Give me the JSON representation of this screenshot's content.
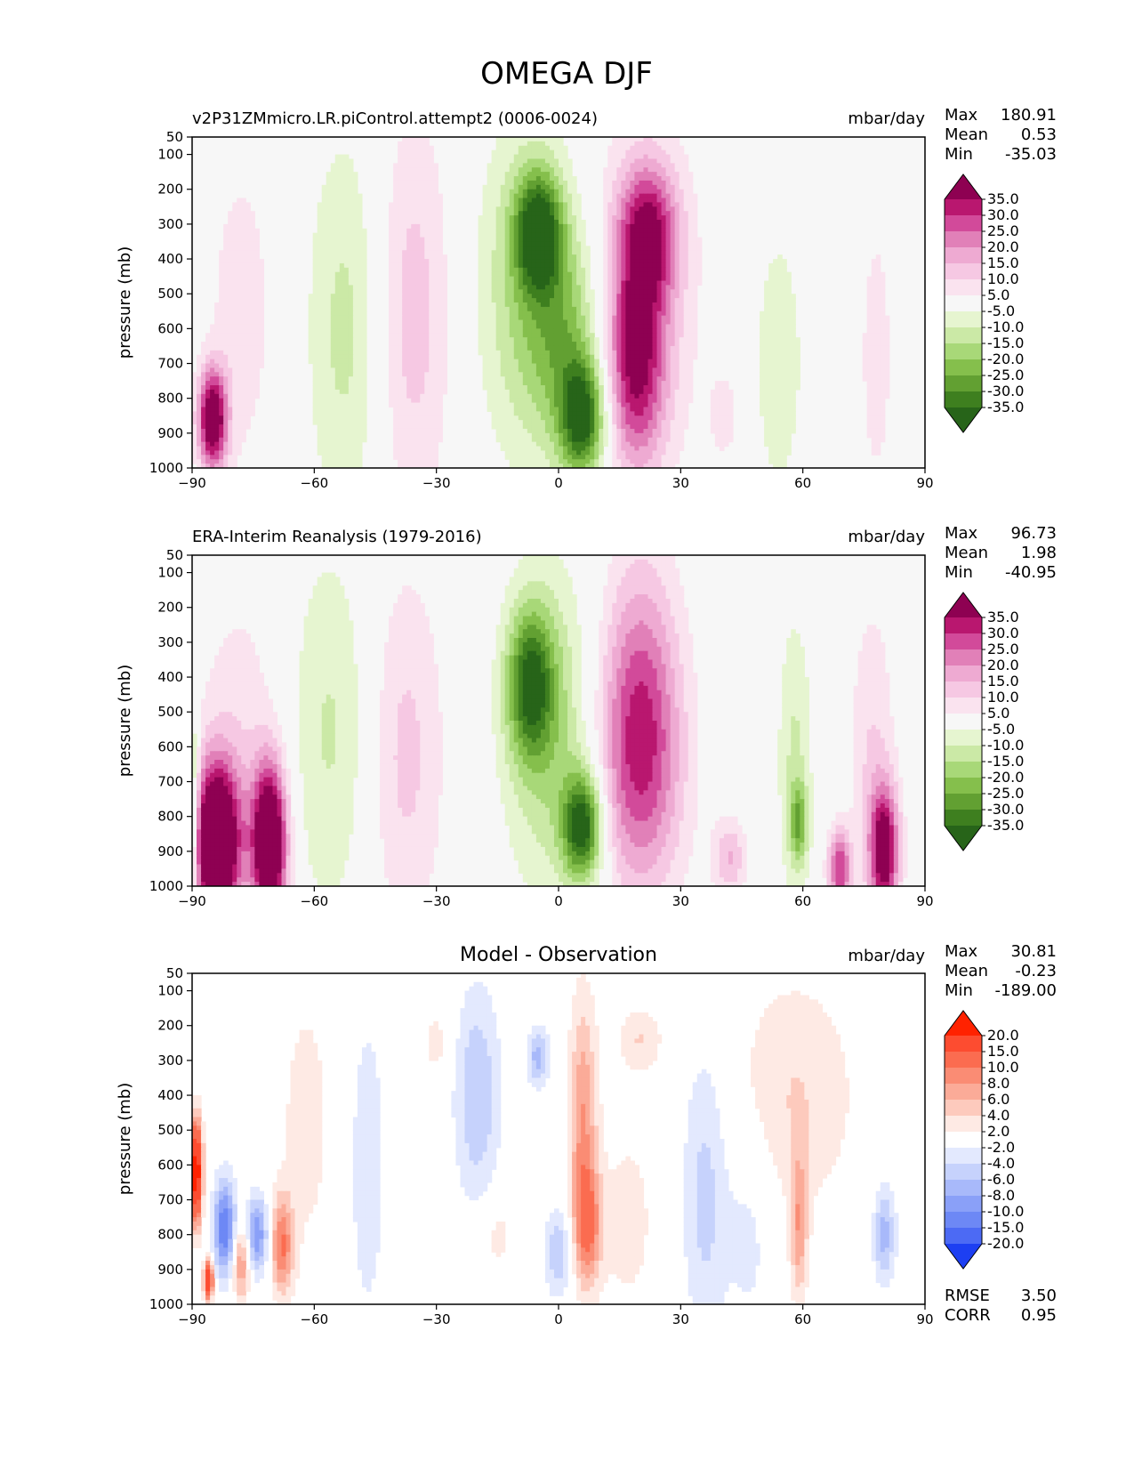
{
  "figure_title": "OMEGA DJF",
  "chart_data": [
    {
      "type": "heatmap",
      "title": "v2P31ZMmicro.LR.piControl.attempt2 (0006-0024)",
      "units": "mbar/day",
      "ylabel": "pressure (mb)",
      "x_ticks": [
        "−90",
        "−60",
        "−30",
        "0",
        "30",
        "60",
        "90"
      ],
      "x_tick_values": [
        -90,
        -60,
        -30,
        0,
        30,
        60,
        90
      ],
      "y_ticks": [
        "50",
        "100",
        "200",
        "300",
        "400",
        "500",
        "600",
        "700",
        "800",
        "900",
        "1000"
      ],
      "y_tick_values": [
        50,
        100,
        200,
        300,
        400,
        500,
        600,
        700,
        800,
        900,
        1000
      ],
      "xlim": [
        -90,
        90
      ],
      "ylim": [
        1000,
        50
      ],
      "stats": [
        {
          "label": "Max",
          "value": "180.91"
        },
        {
          "label": "Mean",
          "value": "0.53"
        },
        {
          "label": "Min",
          "value": "-35.03"
        }
      ],
      "colorbar_labels": [
        "35.0",
        "30.0",
        "25.0",
        "20.0",
        "15.0",
        "10.0",
        "5.0",
        "-5.0",
        "-10.0",
        "-15.0",
        "-20.0",
        "-25.0",
        "-30.0",
        "-35.0"
      ],
      "colorbar_colors": [
        "#8e0152",
        "#b9176f",
        "#d24a9a",
        "#e180b8",
        "#eeaad2",
        "#f6c8e3",
        "#fae3ef",
        "#f7f7f7",
        "#e6f5d0",
        "#cbe9a6",
        "#a8d878",
        "#85bf4c",
        "#62a032",
        "#3e7f1f",
        "#276419"
      ],
      "features": [
        {
          "lon": -5,
          "p": 320,
          "slon": 4,
          "sp": 120,
          "amp": -34
        },
        {
          "lon": 6,
          "p": 860,
          "slon": 4,
          "sp": 120,
          "amp": -36
        },
        {
          "lon": 2,
          "p": 620,
          "slon": 7,
          "sp": 220,
          "amp": -18
        },
        {
          "lon": -8,
          "p": 480,
          "slon": 9,
          "sp": 350,
          "amp": -14
        },
        {
          "lon": 22,
          "p": 330,
          "slon": 5,
          "sp": 140,
          "amp": 30
        },
        {
          "lon": 19,
          "p": 700,
          "slon": 5,
          "sp": 200,
          "amp": 30
        },
        {
          "lon": 20,
          "p": 520,
          "slon": 10,
          "sp": 380,
          "amp": 12
        },
        {
          "lon": -36,
          "p": 560,
          "slon": 7,
          "sp": 420,
          "amp": 13
        },
        {
          "lon": -52,
          "p": 600,
          "slon": 7,
          "sp": 400,
          "amp": -12
        },
        {
          "lon": 54,
          "p": 700,
          "slon": 5,
          "sp": 320,
          "amp": -8
        },
        {
          "lon": 78,
          "p": 680,
          "slon": 3,
          "sp": 300,
          "amp": 8
        },
        {
          "lon": -85,
          "p": 860,
          "slon": 2.5,
          "sp": 100,
          "amp": 45
        },
        {
          "lon": -78,
          "p": 560,
          "slon": 6,
          "sp": 350,
          "amp": 8
        },
        {
          "lon": 41,
          "p": 850,
          "slon": 3,
          "sp": 100,
          "amp": 7
        }
      ]
    },
    {
      "type": "heatmap",
      "title": "ERA-Interim Reanalysis (1979-2016)",
      "units": "mbar/day",
      "ylabel": "pressure (mb)",
      "x_ticks": [
        "−90",
        "−60",
        "−30",
        "0",
        "30",
        "60",
        "90"
      ],
      "x_tick_values": [
        -90,
        -60,
        -30,
        0,
        30,
        60,
        90
      ],
      "y_ticks": [
        "50",
        "100",
        "200",
        "300",
        "400",
        "500",
        "600",
        "700",
        "800",
        "900",
        "1000"
      ],
      "y_tick_values": [
        50,
        100,
        200,
        300,
        400,
        500,
        600,
        700,
        800,
        900,
        1000
      ],
      "xlim": [
        -90,
        90
      ],
      "ylim": [
        1000,
        50
      ],
      "stats": [
        {
          "label": "Max",
          "value": "96.73"
        },
        {
          "label": "Mean",
          "value": "1.98"
        },
        {
          "label": "Min",
          "value": "-40.95"
        }
      ],
      "colorbar_labels": [
        "35.0",
        "30.0",
        "25.0",
        "20.0",
        "15.0",
        "10.0",
        "5.0",
        "-5.0",
        "-10.0",
        "-15.0",
        "-20.0",
        "-25.0",
        "-30.0",
        "-35.0"
      ],
      "colorbar_colors": [
        "#8e0152",
        "#b9176f",
        "#d24a9a",
        "#e180b8",
        "#eeaad2",
        "#f6c8e3",
        "#fae3ef",
        "#f7f7f7",
        "#e6f5d0",
        "#cbe9a6",
        "#a8d878",
        "#85bf4c",
        "#62a032",
        "#3e7f1f",
        "#276419"
      ],
      "features": [
        {
          "lon": -7,
          "p": 420,
          "slon": 4,
          "sp": 150,
          "amp": -30
        },
        {
          "lon": 6,
          "p": 830,
          "slon": 3.5,
          "sp": 110,
          "amp": -38
        },
        {
          "lon": -2,
          "p": 560,
          "slon": 8,
          "sp": 330,
          "amp": -16
        },
        {
          "lon": 20,
          "p": 470,
          "slon": 7,
          "sp": 300,
          "amp": 24
        },
        {
          "lon": 20,
          "p": 720,
          "slon": 8,
          "sp": 250,
          "amp": 14
        },
        {
          "lon": -38,
          "p": 620,
          "slon": 7,
          "sp": 380,
          "amp": 12
        },
        {
          "lon": -56,
          "p": 560,
          "slon": 8,
          "sp": 380,
          "amp": -11
        },
        {
          "lon": 58,
          "p": 640,
          "slon": 3,
          "sp": 300,
          "amp": -11
        },
        {
          "lon": 59,
          "p": 820,
          "slon": 1.5,
          "sp": 80,
          "amp": -20
        },
        {
          "lon": -84,
          "p": 880,
          "slon": 4,
          "sp": 160,
          "amp": 60
        },
        {
          "lon": -71,
          "p": 880,
          "slon": 3,
          "sp": 160,
          "amp": 55
        },
        {
          "lon": -78,
          "p": 560,
          "slon": 8,
          "sp": 320,
          "amp": 8
        },
        {
          "lon": -90,
          "p": 800,
          "slon": 1.2,
          "sp": 200,
          "amp": -25
        },
        {
          "lon": 80,
          "p": 900,
          "slon": 2.5,
          "sp": 130,
          "amp": 40
        },
        {
          "lon": 69,
          "p": 950,
          "slon": 2,
          "sp": 80,
          "amp": 30
        },
        {
          "lon": 77,
          "p": 620,
          "slon": 4,
          "sp": 320,
          "amp": 10
        },
        {
          "lon": 42,
          "p": 920,
          "slon": 3,
          "sp": 80,
          "amp": 15
        }
      ]
    },
    {
      "type": "heatmap",
      "title": "Model - Observation",
      "units": "mbar/day",
      "ylabel": "pressure (mb)",
      "x_ticks": [
        "−90",
        "−60",
        "−30",
        "0",
        "30",
        "60",
        "90"
      ],
      "x_tick_values": [
        -90,
        -60,
        -30,
        0,
        30,
        60,
        90
      ],
      "y_ticks": [
        "50",
        "100",
        "200",
        "300",
        "400",
        "500",
        "600",
        "700",
        "800",
        "900",
        "1000"
      ],
      "y_tick_values": [
        50,
        100,
        200,
        300,
        400,
        500,
        600,
        700,
        800,
        900,
        1000
      ],
      "xlim": [
        -90,
        90
      ],
      "ylim": [
        1000,
        50
      ],
      "stats": [
        {
          "label": "Max",
          "value": "30.81"
        },
        {
          "label": "Mean",
          "value": "-0.23"
        },
        {
          "label": "Min",
          "value": "-189.00"
        }
      ],
      "bottom_stats": [
        {
          "label": "RMSE",
          "value": "3.50"
        },
        {
          "label": "CORR",
          "value": "0.95"
        }
      ],
      "colorbar_labels": [
        "20.0",
        "15.0",
        "10.0",
        "8.0",
        "6.0",
        "4.0",
        "2.0",
        "-2.0",
        "-4.0",
        "-6.0",
        "-8.0",
        "-10.0",
        "-15.0",
        "-20.0"
      ],
      "colorbar_colors": [
        "#ff2200",
        "#fd4c30",
        "#fb6c50",
        "#fa8c74",
        "#fbab98",
        "#fdcabd",
        "#feeae4",
        "#ffffff",
        "#e3e9fe",
        "#c6d2fc",
        "#a8b9fa",
        "#8aa0f8",
        "#6d88f5",
        "#4c6af4",
        "#1d3ff2"
      ],
      "features": [
        {
          "lon": -20,
          "p": 400,
          "slon": 4,
          "sp": 220,
          "amp": -6
        },
        {
          "lon": -5,
          "p": 290,
          "slon": 2,
          "sp": 60,
          "amp": -7
        },
        {
          "lon": 6,
          "p": 470,
          "slon": 2.5,
          "sp": 250,
          "amp": 8
        },
        {
          "lon": 7,
          "p": 780,
          "slon": 2.5,
          "sp": 120,
          "amp": 9
        },
        {
          "lon": 0,
          "p": 850,
          "slon": 2.5,
          "sp": 90,
          "amp": -6
        },
        {
          "lon": 20,
          "p": 240,
          "slon": 4,
          "sp": 70,
          "amp": 4
        },
        {
          "lon": 17,
          "p": 760,
          "slon": 5,
          "sp": 200,
          "amp": 3
        },
        {
          "lon": 36,
          "p": 680,
          "slon": 4,
          "sp": 300,
          "amp": -5
        },
        {
          "lon": 47,
          "p": 780,
          "slon": 4,
          "sp": 220,
          "amp": -3
        },
        {
          "lon": 58,
          "p": 400,
          "slon": 11,
          "sp": 250,
          "amp": 4
        },
        {
          "lon": 59,
          "p": 780,
          "slon": 1.5,
          "sp": 150,
          "amp": 7
        },
        {
          "lon": 80,
          "p": 800,
          "slon": 2,
          "sp": 100,
          "amp": -7
        },
        {
          "lon": -62,
          "p": 480,
          "slon": 5,
          "sp": 300,
          "amp": 3
        },
        {
          "lon": -47,
          "p": 600,
          "slon": 4,
          "sp": 400,
          "amp": -3
        },
        {
          "lon": -82,
          "p": 780,
          "slon": 2,
          "sp": 100,
          "amp": -12
        },
        {
          "lon": -74,
          "p": 800,
          "slon": 2,
          "sp": 80,
          "amp": -10
        },
        {
          "lon": -68,
          "p": 830,
          "slon": 2,
          "sp": 100,
          "amp": 10
        },
        {
          "lon": -78,
          "p": 880,
          "slon": 1.5,
          "sp": 80,
          "amp": 9
        },
        {
          "lon": -89,
          "p": 620,
          "slon": 1,
          "sp": 100,
          "amp": 25
        },
        {
          "lon": -86,
          "p": 930,
          "slon": 0.8,
          "sp": 40,
          "amp": 20
        },
        {
          "lon": -30,
          "p": 250,
          "slon": 2.5,
          "sp": 70,
          "amp": 3
        },
        {
          "lon": -15,
          "p": 800,
          "slon": 3,
          "sp": 80,
          "amp": 3
        }
      ]
    }
  ]
}
